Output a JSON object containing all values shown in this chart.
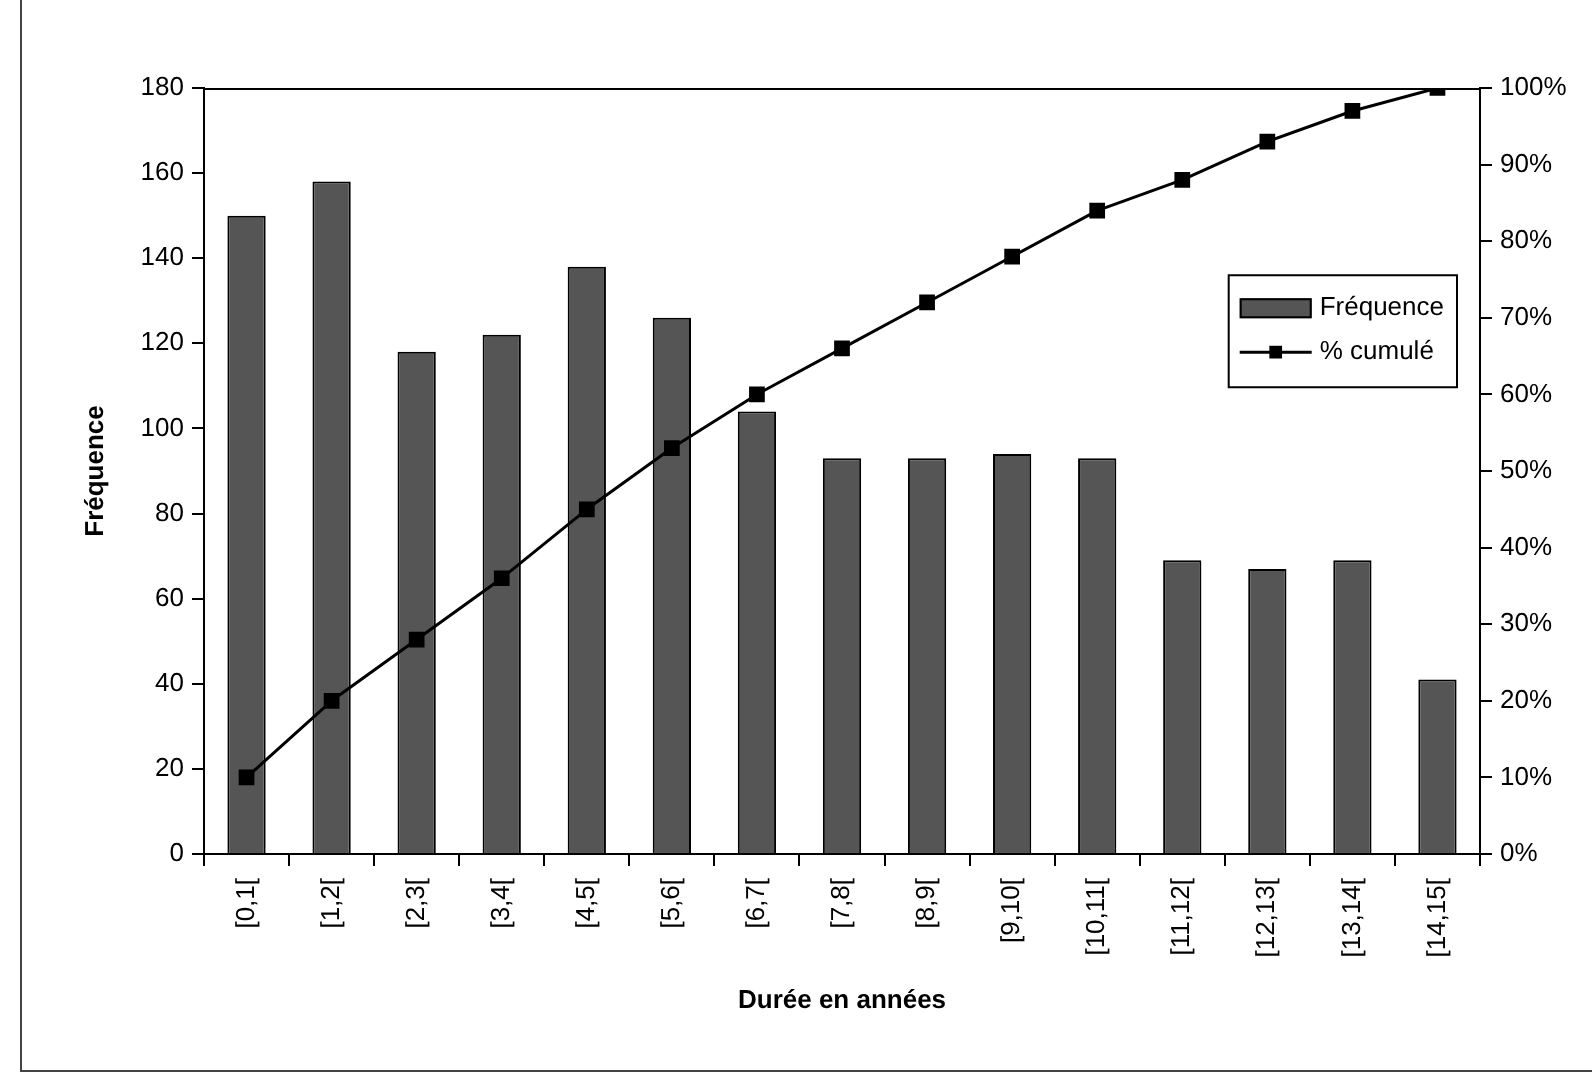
{
  "chart_data": {
    "type": "bar",
    "xlabel": "Durée en années",
    "ylabel": "Fréquence",
    "categories": [
      "[0,1[",
      "[1,2[",
      "[2,3[",
      "[3,4[",
      "[4,5[",
      "[5,6[",
      "[6,7[",
      "[7,8[",
      "[8,9[",
      "[9,10[",
      "[10,11[",
      "[11,12[",
      "[12,13[",
      "[13,14[",
      "[14,15["
    ],
    "series": [
      {
        "name": "Fréquence",
        "color": "#555555",
        "values": [
          150,
          158,
          118,
          122,
          138,
          126,
          104,
          93,
          93,
          94,
          93,
          69,
          67,
          69,
          41
        ]
      },
      {
        "name": "% cumulé",
        "type": "line",
        "axis": "y2",
        "color": "#000000",
        "marker": "square",
        "values": [
          10,
          20,
          28,
          36,
          45,
          53,
          60,
          66,
          72,
          78,
          84,
          88,
          93,
          97,
          100
        ]
      }
    ],
    "ylim": [
      0,
      180
    ],
    "yticks": [
      0,
      20,
      40,
      60,
      80,
      100,
      120,
      140,
      160,
      180
    ],
    "y2lim": [
      0,
      100
    ],
    "y2ticks": [
      {
        "value": 0,
        "label": "0%"
      },
      {
        "value": 10,
        "label": "10%"
      },
      {
        "value": 20,
        "label": "20%"
      },
      {
        "value": 30,
        "label": "30%"
      },
      {
        "value": 40,
        "label": "40%"
      },
      {
        "value": 50,
        "label": "50%"
      },
      {
        "value": 60,
        "label": "60%"
      },
      {
        "value": 70,
        "label": "70%"
      },
      {
        "value": 80,
        "label": "80%"
      },
      {
        "value": 90,
        "label": "90%"
      },
      {
        "value": 100,
        "label": "100%"
      }
    ],
    "legend": "right"
  }
}
